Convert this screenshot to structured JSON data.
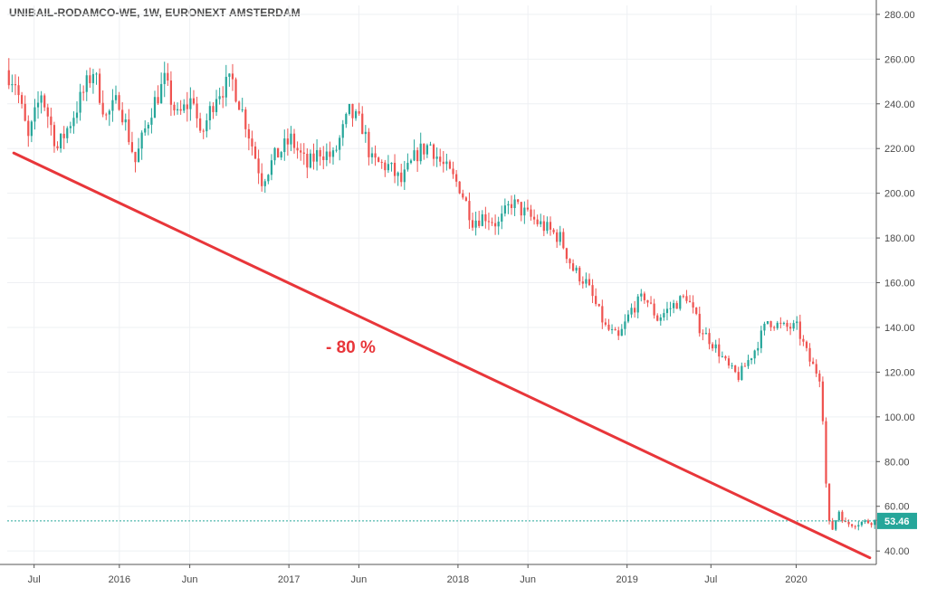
{
  "header": {
    "title": "UNIBAIL-RODAMCO-WE, 1W, EURONEXT AMSTERDAM"
  },
  "chart_data": {
    "type": "candlestick",
    "title": "UNIBAIL-RODAMCO-WE, 1W, EURONEXT AMSTERDAM",
    "y_axis": {
      "position": "right",
      "ylim": [
        34,
        284
      ],
      "ticks": [
        40,
        60,
        80,
        100,
        120,
        140,
        160,
        180,
        200,
        220,
        240,
        260,
        280
      ],
      "tick_labels": [
        "40.00",
        "60.00",
        "80.00",
        "100.00",
        "120.00",
        "140.00",
        "160.00",
        "180.00",
        "200.00",
        "220.00",
        "240.00",
        "260.00",
        "280.00"
      ]
    },
    "x_axis": {
      "range": [
        "2015-05-04",
        "2020-06-22"
      ],
      "ticks": [
        "2015-07-01",
        "2016-01-01",
        "2016-06-01",
        "2017-01-01",
        "2017-06-01",
        "2018-01-01",
        "2018-06-01",
        "2019-01-01",
        "2019-07-01",
        "2020-01-01"
      ],
      "tick_labels": [
        "Jul",
        "2016",
        "Jun",
        "2017",
        "Jun",
        "2018",
        "Jun",
        "2019",
        "Jul",
        "2020"
      ]
    },
    "grid": true,
    "colors": {
      "up": "#26a69a",
      "down": "#ef5350",
      "trend": "#e8363a",
      "last_price": "#26a69a"
    },
    "price_anchors": [
      [
        "2015-05-04",
        255
      ],
      [
        "2015-05-25",
        250
      ],
      [
        "2015-06-22",
        224
      ],
      [
        "2015-07-20",
        245
      ],
      [
        "2015-08-24",
        220
      ],
      [
        "2015-09-21",
        232
      ],
      [
        "2015-11-09",
        255
      ],
      [
        "2015-12-07",
        234
      ],
      [
        "2016-01-04",
        242
      ],
      [
        "2016-02-08",
        214
      ],
      [
        "2016-03-14",
        238
      ],
      [
        "2016-04-11",
        250
      ],
      [
        "2016-05-09",
        234
      ],
      [
        "2016-06-13",
        243
      ],
      [
        "2016-06-27",
        224
      ],
      [
        "2016-08-01",
        245
      ],
      [
        "2016-09-05",
        250
      ],
      [
        "2016-10-03",
        232
      ],
      [
        "2016-11-07",
        206
      ],
      [
        "2016-12-05",
        216
      ],
      [
        "2017-01-09",
        224
      ],
      [
        "2017-02-13",
        212
      ],
      [
        "2017-03-13",
        219
      ],
      [
        "2017-04-10",
        216
      ],
      [
        "2017-05-15",
        236
      ],
      [
        "2017-06-12",
        230
      ],
      [
        "2017-07-03",
        214
      ],
      [
        "2017-08-07",
        212
      ],
      [
        "2017-09-04",
        205
      ],
      [
        "2017-10-09",
        218
      ],
      [
        "2017-11-06",
        222
      ],
      [
        "2017-11-27",
        214
      ],
      [
        "2018-01-08",
        203
      ],
      [
        "2018-02-05",
        188
      ],
      [
        "2018-03-05",
        190
      ],
      [
        "2018-04-02",
        186
      ],
      [
        "2018-04-30",
        196
      ],
      [
        "2018-06-04",
        190
      ],
      [
        "2018-07-02",
        186
      ],
      [
        "2018-08-13",
        180
      ],
      [
        "2018-09-10",
        166
      ],
      [
        "2018-10-08",
        160
      ],
      [
        "2018-11-19",
        140
      ],
      [
        "2018-12-17",
        135
      ],
      [
        "2019-01-14",
        148
      ],
      [
        "2019-02-11",
        154
      ],
      [
        "2019-03-11",
        144
      ],
      [
        "2019-04-15",
        150
      ],
      [
        "2019-05-13",
        154
      ],
      [
        "2019-06-10",
        140
      ],
      [
        "2019-07-15",
        131
      ],
      [
        "2019-08-12",
        122
      ],
      [
        "2019-09-02",
        118
      ],
      [
        "2019-10-07",
        130
      ],
      [
        "2019-11-04",
        143
      ],
      [
        "2019-12-09",
        140
      ],
      [
        "2020-01-06",
        140
      ],
      [
        "2020-02-03",
        125
      ],
      [
        "2020-02-24",
        118
      ],
      [
        "2020-03-02",
        100
      ],
      [
        "2020-03-09",
        70
      ],
      [
        "2020-03-16",
        52
      ],
      [
        "2020-03-23",
        50
      ],
      [
        "2020-04-06",
        58
      ],
      [
        "2020-04-20",
        52
      ],
      [
        "2020-06-22",
        53.46
      ]
    ],
    "trend_line": {
      "from": [
        "2015-05-18",
        218
      ],
      "to": [
        "2020-06-08",
        37
      ]
    },
    "annotation": "- 80 %",
    "last_price": 53.46,
    "last_price_label": "53.46"
  }
}
